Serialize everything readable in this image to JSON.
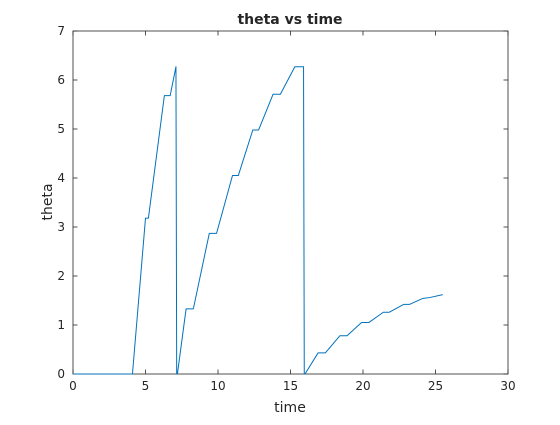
{
  "chart_data": {
    "type": "line",
    "title": "theta vs time",
    "xlabel": "time",
    "ylabel": "theta",
    "xlim": [
      0,
      30
    ],
    "ylim": [
      0,
      7
    ],
    "xticks": [
      "0",
      "5",
      "10",
      "15",
      "20",
      "25",
      "30"
    ],
    "yticks": [
      "0",
      "1",
      "2",
      "3",
      "4",
      "5",
      "6",
      "7"
    ],
    "grid": false,
    "box": true,
    "series": [
      {
        "color": "#0072BD",
        "x": [
          0,
          4.1,
          5.0,
          5.2,
          6.3,
          6.7,
          7.1,
          7.15,
          7.2,
          7.8,
          8.3,
          9.4,
          9.9,
          11.0,
          11.4,
          12.4,
          12.8,
          13.8,
          14.3,
          15.3,
          15.9,
          15.95,
          16.0,
          16.9,
          17.4,
          18.4,
          18.9,
          19.9,
          20.4,
          21.4,
          21.8,
          22.8,
          23.2,
          24.1,
          24.6,
          25.5
        ],
        "y": [
          0,
          0,
          3.18,
          3.18,
          5.68,
          5.68,
          6.27,
          0,
          0,
          1.33,
          1.33,
          2.87,
          2.87,
          4.05,
          4.05,
          4.98,
          4.98,
          5.71,
          5.71,
          6.27,
          6.27,
          0,
          0,
          0.43,
          0.43,
          0.78,
          0.78,
          1.05,
          1.05,
          1.26,
          1.26,
          1.42,
          1.42,
          1.54,
          1.56,
          1.62
        ]
      }
    ]
  }
}
